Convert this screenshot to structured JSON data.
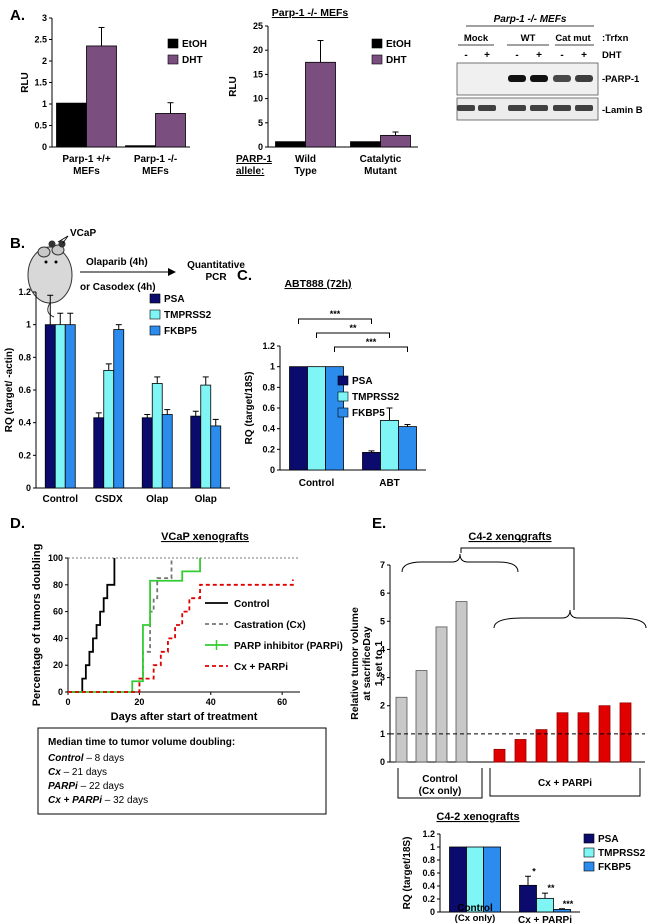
{
  "panels": {
    "A": "A.",
    "B": "B.",
    "C": "C.",
    "D": "D.",
    "E": "E."
  },
  "colors": {
    "navy": "#0b0b6e",
    "cyan": "#7ff5f5",
    "blue": "#2b8cee",
    "purple": "#7b4e80",
    "black": "#000000",
    "grey": "#c8c8c8",
    "red": "#e00000",
    "green": "#33cc33"
  },
  "blot": {
    "title": "Parp-1 -/- MEFs",
    "trfxn": ":Trfxn",
    "dht": "DHT",
    "groups": [
      "Mock",
      "WT",
      "Cat mut"
    ],
    "signs": [
      "-",
      "+",
      "-",
      "+",
      "-",
      "+"
    ],
    "bands": [
      "-PARP-1",
      "-Lamin B"
    ]
  },
  "mouse": {
    "label": "VCaP",
    "drug1": "Olaparib (4h)",
    "drug2": "or Casodex (4h)",
    "out1": "Quantitative",
    "out2": "PCR"
  },
  "median": {
    "title": "Median time to tumor volume doubling:",
    "lines": [
      {
        "name": "Control",
        "val": " – 8 days"
      },
      {
        "name": "Cx",
        "val": " – 21 days"
      },
      {
        "name": "PARPi",
        "val": " – 22 days"
      },
      {
        "name": "Cx + PARPi",
        "val": " – 32 days"
      }
    ]
  },
  "chart_data": [
    {
      "id": "A1",
      "type": "bar",
      "categories": [
        "Parp-1 +/+ MEFs",
        "Parp-1 -/- MEFs"
      ],
      "series": [
        {
          "name": "EtOH",
          "values": [
            1.02,
            0.03
          ]
        },
        {
          "name": "DHT",
          "values": [
            2.35,
            0.78
          ]
        }
      ],
      "errors": [
        [
          0,
          0
        ],
        [
          0.43,
          0.25
        ]
      ],
      "ylabel": "RLU",
      "ylim": [
        0,
        3
      ],
      "yticks": [
        0,
        0.5,
        1,
        1.5,
        2,
        2.5,
        3
      ]
    },
    {
      "id": "A2",
      "type": "bar",
      "title": "Parp-1 -/- MEFs",
      "categories": [
        "Wild Type",
        "Catalytic Mutant"
      ],
      "allele_label": "PARP-1 allele:",
      "series": [
        {
          "name": "EtOH",
          "values": [
            1.1,
            1.1
          ]
        },
        {
          "name": "DHT",
          "values": [
            17.5,
            2.4
          ]
        }
      ],
      "errors": [
        [
          0,
          0
        ],
        [
          4.5,
          0.7
        ]
      ],
      "ylabel": "RLU",
      "ylim": [
        0,
        25
      ],
      "yticks": [
        0,
        5,
        10,
        15,
        20,
        25
      ]
    },
    {
      "id": "B",
      "type": "bar",
      "categories": [
        "Control",
        "CSDX",
        "Olap",
        "Olap"
      ],
      "series": [
        {
          "name": "PSA",
          "values": [
            1.0,
            0.43,
            0.43,
            0.44
          ]
        },
        {
          "name": "TMPRSS2",
          "values": [
            1.0,
            0.72,
            0.64,
            0.63
          ]
        },
        {
          "name": "FKBP5",
          "values": [
            1.0,
            0.97,
            0.45,
            0.38
          ]
        }
      ],
      "errors": [
        [
          0.18,
          0.03,
          0.02,
          0.03
        ],
        [
          0.07,
          0.04,
          0.04,
          0.05
        ],
        [
          0.07,
          0.03,
          0.03,
          0.04
        ]
      ],
      "ylabel": "RQ (target/ -actin)",
      "ylim": [
        0,
        1.2
      ],
      "yticks": [
        0,
        0.2,
        0.4,
        0.6,
        0.8,
        1,
        1.2
      ]
    },
    {
      "id": "C",
      "type": "bar",
      "title": "ABT888 (72h)",
      "categories": [
        "Control",
        "ABT"
      ],
      "series": [
        {
          "name": "PSA",
          "values": [
            1.0,
            0.17
          ]
        },
        {
          "name": "TMPRSS2",
          "values": [
            1.0,
            0.48
          ]
        },
        {
          "name": "FKBP5",
          "values": [
            1.0,
            0.42
          ]
        }
      ],
      "errors": [
        [
          0,
          0.015
        ],
        [
          0,
          0.12
        ],
        [
          0,
          0.02
        ]
      ],
      "significance": [
        "***",
        "**",
        "***"
      ],
      "ylabel": "RQ (target/18S)",
      "ylim": [
        0,
        1.2
      ],
      "yticks": [
        0,
        0.2,
        0.4,
        0.6,
        0.8,
        1,
        1.2
      ]
    },
    {
      "id": "D",
      "type": "line",
      "title": "VCaP xenografts",
      "xlabel": "Days after start of treatment",
      "ylabel": "Percentage of tumors doubling",
      "xlim": [
        0,
        65
      ],
      "ylim": [
        0,
        100
      ],
      "xticks": [
        0,
        20,
        40,
        60
      ],
      "yticks": [
        0,
        20,
        40,
        60,
        80,
        100
      ],
      "series": [
        {
          "name": "Control",
          "steps": [
            [
              2,
              0
            ],
            [
              4,
              10
            ],
            [
              5,
              20
            ],
            [
              6,
              30
            ],
            [
              7,
              40
            ],
            [
              8,
              50
            ],
            [
              9,
              60
            ],
            [
              10,
              70
            ],
            [
              11,
              80
            ],
            [
              13,
              100
            ]
          ]
        },
        {
          "name": "Castration (Cx)",
          "steps": [
            [
              19,
              0
            ],
            [
              20,
              10
            ],
            [
              21,
              30
            ],
            [
              23,
              60
            ],
            [
              24,
              70
            ],
            [
              25,
              85
            ],
            [
              28,
              85
            ],
            [
              29,
              100
            ]
          ]
        },
        {
          "name": "PARP inhibitor (PARPi)",
          "steps": [
            [
              17,
              0
            ],
            [
              18,
              8
            ],
            [
              21,
              50
            ],
            [
              23,
              83
            ],
            [
              30,
              83
            ],
            [
              32,
              90
            ],
            [
              37,
              100
            ]
          ]
        },
        {
          "name": "Cx + PARPi",
          "steps": [
            [
              19,
              0
            ],
            [
              20,
              10
            ],
            [
              24,
              20
            ],
            [
              26,
              30
            ],
            [
              28,
              40
            ],
            [
              30,
              50
            ],
            [
              32,
              60
            ],
            [
              34,
              70
            ],
            [
              37,
              80
            ],
            [
              63,
              80
            ],
            [
              63,
              84
            ]
          ]
        }
      ]
    },
    {
      "id": "E1",
      "type": "bar",
      "title": "C4-2 xenografts",
      "ylabel": "Relative tumor volume at sacrificeDay 1 set to 1",
      "groups": [
        "Control (Cx only)",
        "Cx + PARPi"
      ],
      "significance": "*",
      "control_values": [
        2.3,
        3.25,
        4.8,
        5.7
      ],
      "treated_values": [
        0.45,
        0.8,
        1.15,
        1.75,
        1.75,
        2.0,
        2.1
      ],
      "reference_line": 1,
      "ylim": [
        0,
        7
      ],
      "yticks": [
        0,
        1,
        2,
        3,
        4,
        5,
        6,
        7
      ]
    },
    {
      "id": "E2",
      "type": "bar",
      "title": "C4-2 xenografts",
      "categories": [
        "Control (Cx only)",
        "Cx + PARPi"
      ],
      "series": [
        {
          "name": "PSA",
          "values": [
            1.0,
            0.41
          ]
        },
        {
          "name": "TMPRSS2",
          "values": [
            1.0,
            0.21
          ]
        },
        {
          "name": "FKBP5",
          "values": [
            1.0,
            0.04
          ]
        }
      ],
      "errors": [
        [
          0,
          0.14
        ],
        [
          0,
          0.08
        ],
        [
          0,
          0.01
        ]
      ],
      "significance": [
        "*",
        "**",
        "***"
      ],
      "ylabel": "RQ (target/18S)",
      "ylim": [
        0,
        1.2
      ],
      "yticks": [
        0,
        0.2,
        0.4,
        0.6,
        0.8,
        1,
        1.2
      ]
    }
  ]
}
